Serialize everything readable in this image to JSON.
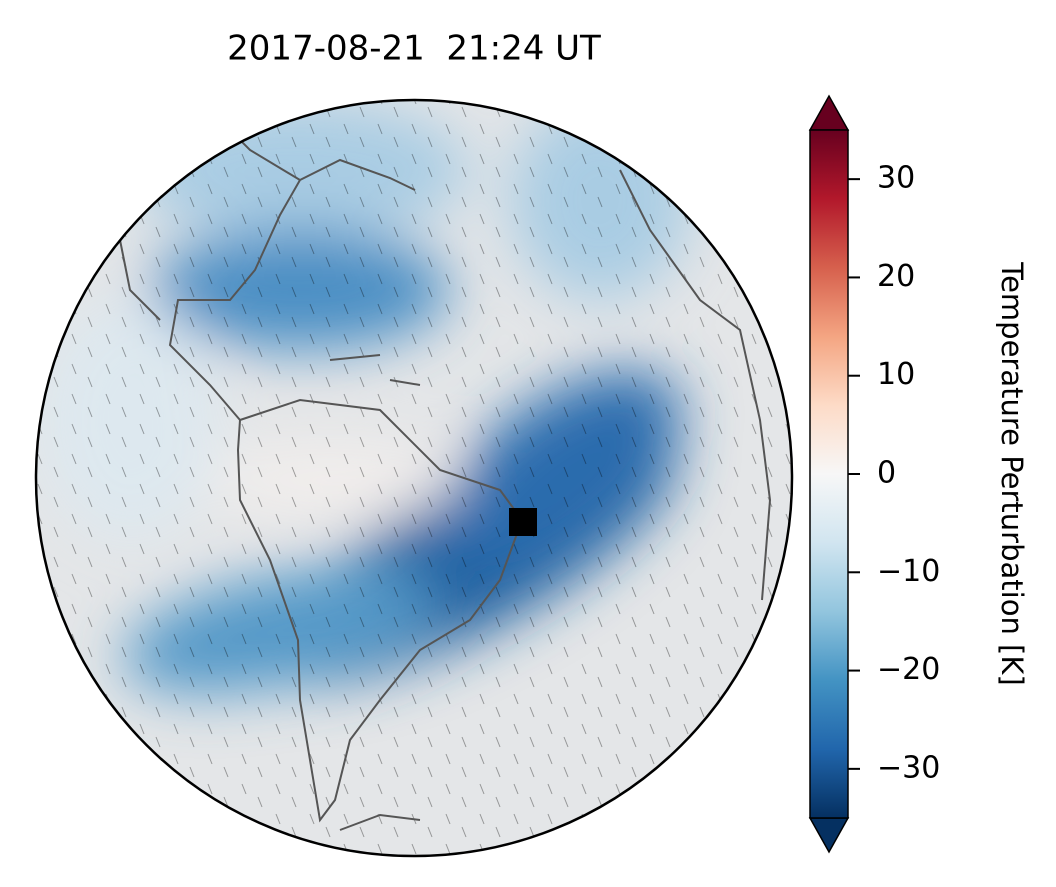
{
  "title": "2017-08-21  21:24 UT",
  "colorbar": {
    "label": "Temperature Perturbation [K]",
    "lim": [
      -35,
      35
    ],
    "ticks": [
      {
        "value": -30,
        "label": "−30"
      },
      {
        "value": -20,
        "label": "−20"
      },
      {
        "value": -10,
        "label": "−10"
      },
      0,
      10,
      20,
      30
    ],
    "colormap": [
      "#053061",
      "#2166ac",
      "#4393c3",
      "#92c5de",
      "#d1e5f0",
      "#f7f7f7",
      "#fddbc7",
      "#f4a582",
      "#d6604d",
      "#b2182b",
      "#67001f"
    ]
  }
}
